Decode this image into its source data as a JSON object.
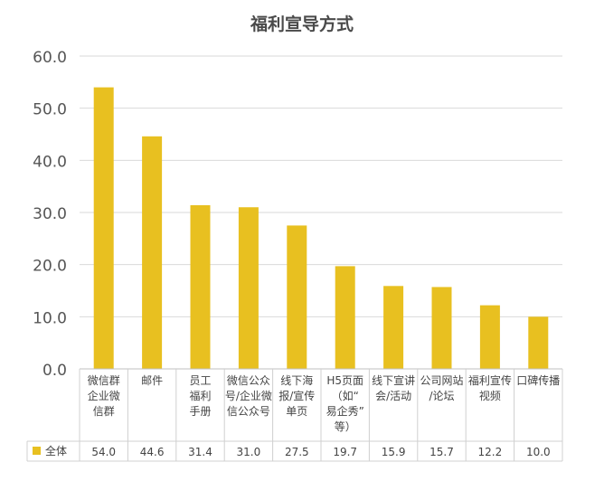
{
  "chart_data": {
    "type": "bar",
    "title": "福利宣导方式",
    "categories_lines": [
      [
        "微信群",
        "企业微",
        "信群"
      ],
      [
        "邮件"
      ],
      [
        "员工",
        "福利",
        "手册"
      ],
      [
        "微信公众",
        "号/企业微",
        "信公众号"
      ],
      [
        "线下海",
        "报/宣传",
        "单页"
      ],
      [
        "H5页面",
        "（如“",
        "易企秀”",
        "等）"
      ],
      [
        "线下宣讲",
        "会/活动"
      ],
      [
        "公司网站",
        "/论坛"
      ],
      [
        "福利宣传",
        "视频"
      ],
      [
        "口碑传播"
      ]
    ],
    "series": [
      {
        "name": "全体",
        "values": [
          54.0,
          44.6,
          31.4,
          31.0,
          27.5,
          19.7,
          15.9,
          15.7,
          12.2,
          10.0
        ],
        "value_labels": [
          "54.0",
          "44.6",
          "31.4",
          "31.0",
          "27.5",
          "19.7",
          "15.9",
          "15.7",
          "12.2",
          "10.0"
        ],
        "color": "#E8C020"
      }
    ],
    "ylim": [
      0,
      60
    ],
    "yticks": [
      "0.0",
      "10.0",
      "20.0",
      "30.0",
      "40.0",
      "50.0",
      "60.0"
    ],
    "grid": true,
    "legend": "data-table-row"
  }
}
